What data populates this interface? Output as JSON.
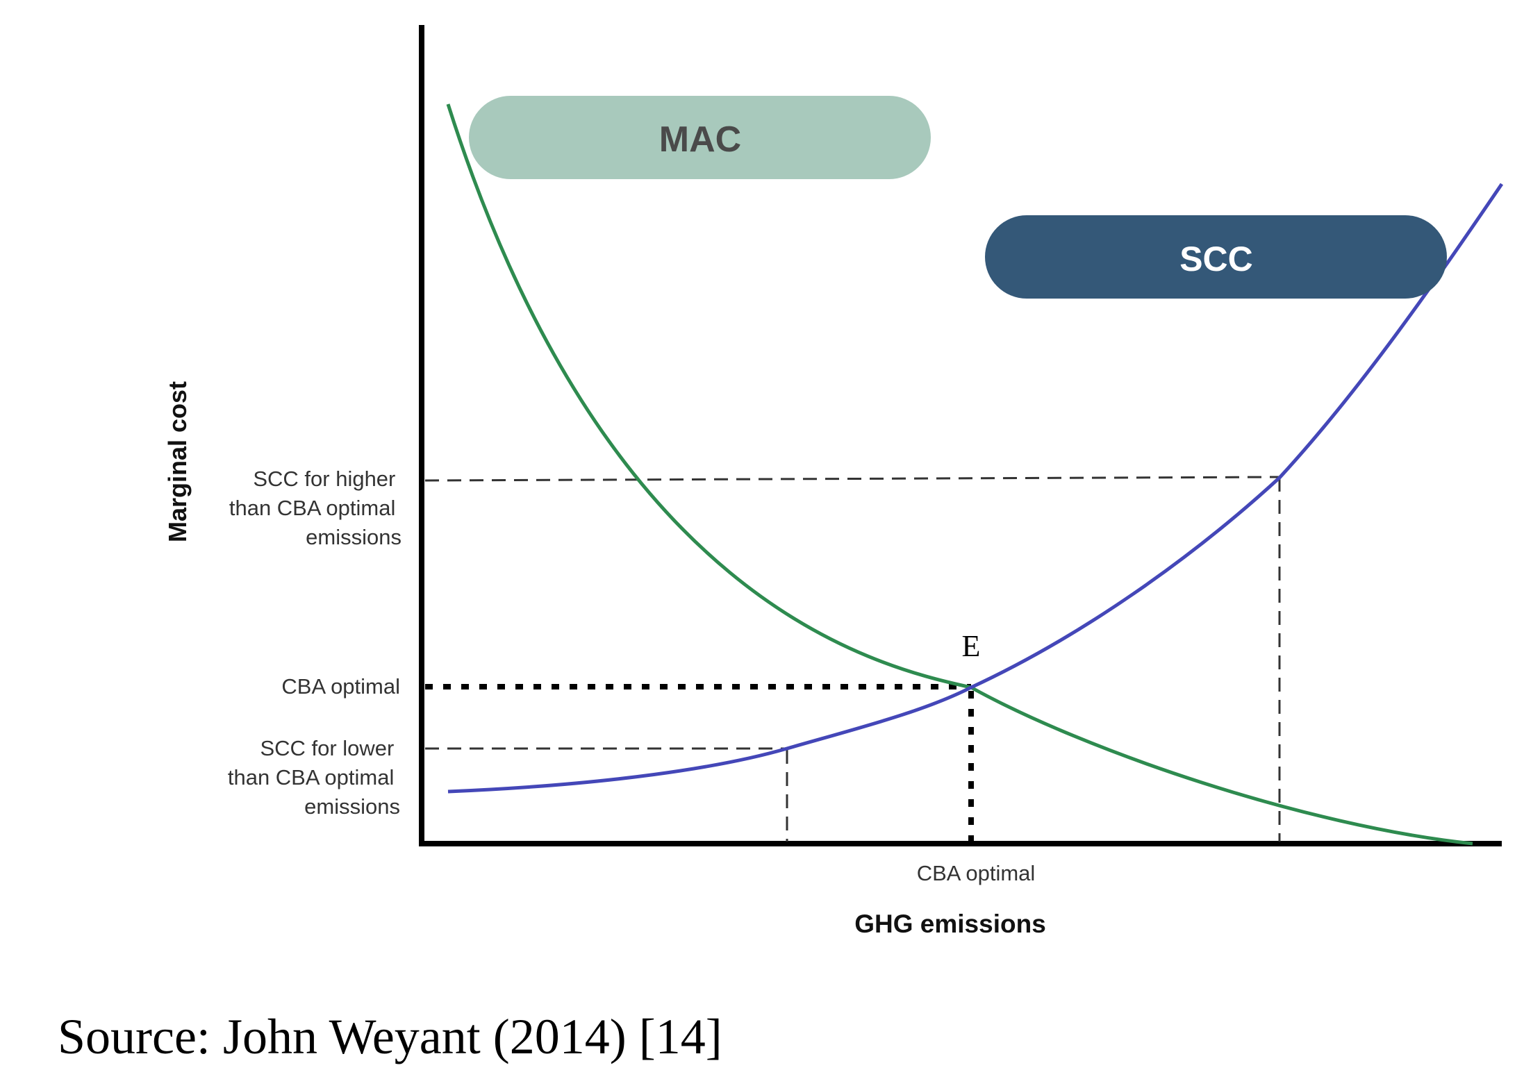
{
  "diagram": {
    "y_axis_label": "Marginal cost",
    "x_axis_label": "GHG emissions",
    "x_tick_label": "CBA optimal",
    "y_tick_labels": {
      "higher": [
        "SCC for higher",
        "than CBA optimal",
        "emissions"
      ],
      "optimal": [
        "CBA optimal"
      ],
      "lower": [
        "SCC for lower",
        "than CBA optimal",
        "emissions"
      ]
    },
    "equilibrium_label": "E",
    "curves": {
      "mac": {
        "label": "MAC",
        "color": "#2e8b4f",
        "badge_color": "#a8c9bc",
        "badge_text_color": "#4a4a4a"
      },
      "scc": {
        "label": "SCC",
        "color": "#4447b8",
        "badge_color": "#345878",
        "badge_text_color": "#ffffff"
      }
    },
    "source": "Source: John Weyant (2014) [14]"
  }
}
